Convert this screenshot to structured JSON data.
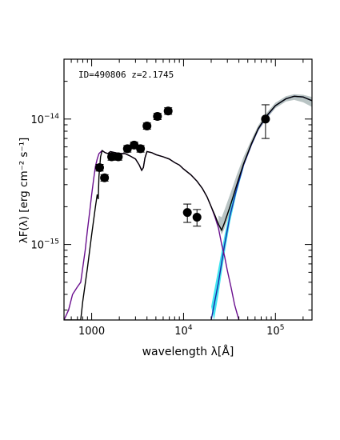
{
  "chart_data": {
    "type": "scatter",
    "annotation": "ID=490806 z=2.1745",
    "xlabel": "wavelength λ[Å]",
    "ylabel": "λF(λ) [erg cm⁻² s⁻¹]",
    "xscale": "log",
    "yscale": "log",
    "xlim": [
      500,
      250000
    ],
    "ylim": [
      2.5e-16,
      3e-14
    ],
    "x_ticks": [
      {
        "value": 1000,
        "label": "1000"
      },
      {
        "value": 10000,
        "label": "10",
        "exp": "4"
      },
      {
        "value": 100000,
        "label": "10",
        "exp": "5"
      }
    ],
    "y_ticks": [
      {
        "value": 1e-14,
        "label": "10",
        "exp": "−14"
      },
      {
        "value": 1e-15,
        "label": "10",
        "exp": "−15"
      }
    ],
    "colors": {
      "points": "#000000",
      "total_model": "#000000",
      "galaxy_model": "#6a0f8e",
      "torus_model": "#1a2aa8",
      "torus_band": "#40e4f0",
      "total_band": "#b9c4c4"
    },
    "photometry": [
      {
        "x": 1220,
        "y": 4.1e-15,
        "yerr": 2.5e-16
      },
      {
        "x": 1380,
        "y": 3.4e-15,
        "yerr": 2e-16
      },
      {
        "x": 1650,
        "y": 5e-15,
        "yerr": 3e-16
      },
      {
        "x": 1950,
        "y": 5e-15,
        "yerr": 3e-16
      },
      {
        "x": 2450,
        "y": 5.8e-15,
        "yerr": 3.5e-16
      },
      {
        "x": 2900,
        "y": 6.2e-15,
        "yerr": 3.5e-16
      },
      {
        "x": 3400,
        "y": 5.8e-15,
        "yerr": 3.5e-16
      },
      {
        "x": 4000,
        "y": 8.8e-15,
        "yerr": 5e-16
      },
      {
        "x": 5200,
        "y": 1.05e-14,
        "yerr": 6e-16
      },
      {
        "x": 6800,
        "y": 1.16e-14,
        "yerr": 7e-16
      },
      {
        "x": 11000,
        "y": 1.8e-15,
        "yerr": 3e-16
      },
      {
        "x": 14000,
        "y": 1.65e-15,
        "yerr": 2.5e-16
      },
      {
        "x": 78000,
        "y": 1e-14,
        "yerr": 3e-15
      }
    ],
    "galaxy_model": [
      [
        500,
        2.5e-16
      ],
      [
        560,
        3e-16
      ],
      [
        620,
        4e-16
      ],
      [
        700,
        4.6e-16
      ],
      [
        760,
        5e-16
      ],
      [
        800,
        6.5e-16
      ],
      [
        850,
        9e-16
      ],
      [
        900,
        1.3e-15
      ],
      [
        950,
        1.8e-15
      ],
      [
        1000,
        2.5e-15
      ],
      [
        1050,
        3.3e-15
      ],
      [
        1100,
        4.2e-15
      ],
      [
        1150,
        4.8e-15
      ],
      [
        1200,
        5.3e-15
      ],
      [
        1300,
        5.6e-15
      ],
      [
        1400,
        5.4e-15
      ],
      [
        1500,
        5.3e-15
      ],
      [
        1600,
        5.5e-15
      ],
      [
        1800,
        5.4e-15
      ],
      [
        2000,
        5.3e-15
      ],
      [
        2300,
        5.3e-15
      ],
      [
        2600,
        5.1e-15
      ],
      [
        3000,
        4.8e-15
      ],
      [
        3300,
        4.3e-15
      ],
      [
        3500,
        3.9e-15
      ],
      [
        3650,
        4.1e-15
      ],
      [
        3800,
        4.9e-15
      ],
      [
        4000,
        5.5e-15
      ],
      [
        4500,
        5.4e-15
      ],
      [
        5000,
        5.2e-15
      ],
      [
        6000,
        5e-15
      ],
      [
        7000,
        4.8e-15
      ],
      [
        8000,
        4.5e-15
      ],
      [
        9000,
        4.3e-15
      ],
      [
        10000,
        4e-15
      ],
      [
        12000,
        3.6e-15
      ],
      [
        14000,
        3.2e-15
      ],
      [
        16000,
        2.8e-15
      ],
      [
        18000,
        2.4e-15
      ],
      [
        20000,
        2e-15
      ],
      [
        22000,
        1.65e-15
      ],
      [
        24000,
        1.35e-15
      ],
      [
        26000,
        1e-15
      ],
      [
        28000,
        8e-16
      ],
      [
        30000,
        6.2e-16
      ],
      [
        33000,
        4.5e-16
      ],
      [
        36000,
        3.3e-16
      ],
      [
        40000,
        2.5e-16
      ]
    ],
    "torus_model": [
      [
        20000,
        2.5e-16
      ],
      [
        24000,
        5e-16
      ],
      [
        28000,
        1e-15
      ],
      [
        32000,
        1.7e-15
      ],
      [
        38000,
        2.8e-15
      ],
      [
        45000,
        4.3e-15
      ],
      [
        55000,
        6.3e-15
      ],
      [
        65000,
        8.3e-15
      ],
      [
        80000,
        1.05e-14
      ],
      [
        100000,
        1.28e-14
      ],
      [
        130000,
        1.45e-14
      ],
      [
        160000,
        1.52e-14
      ],
      [
        200000,
        1.5e-14
      ],
      [
        250000,
        1.4e-14
      ]
    ],
    "total_model": [
      [
        500,
        2.5e-16
      ],
      [
        760,
        2.5e-16
      ],
      [
        800,
        3.5e-16
      ],
      [
        900,
        6.5e-16
      ],
      [
        1000,
        1.2e-15
      ],
      [
        1100,
        2e-15
      ],
      [
        1150,
        2.5e-15
      ],
      [
        1180,
        2.3e-15
      ],
      [
        1200,
        3.5e-15
      ],
      [
        1250,
        5e-15
      ],
      [
        1300,
        5.6e-15
      ],
      [
        1400,
        5.4e-15
      ],
      [
        1500,
        5.3e-15
      ],
      [
        1600,
        5.5e-15
      ],
      [
        1800,
        5.4e-15
      ],
      [
        2000,
        5.3e-15
      ],
      [
        2300,
        5.3e-15
      ],
      [
        2600,
        5.1e-15
      ],
      [
        3000,
        4.8e-15
      ],
      [
        3300,
        4.3e-15
      ],
      [
        3500,
        3.9e-15
      ],
      [
        3650,
        4.1e-15
      ],
      [
        3800,
        4.9e-15
      ],
      [
        4000,
        5.5e-15
      ],
      [
        4500,
        5.4e-15
      ],
      [
        5000,
        5.2e-15
      ],
      [
        6000,
        5e-15
      ],
      [
        7000,
        4.8e-15
      ],
      [
        8000,
        4.5e-15
      ],
      [
        9000,
        4.3e-15
      ],
      [
        10000,
        4e-15
      ],
      [
        12000,
        3.6e-15
      ],
      [
        14000,
        3.2e-15
      ],
      [
        16000,
        2.8e-15
      ],
      [
        18000,
        2.4e-15
      ],
      [
        20000,
        2e-15
      ],
      [
        22000,
        1.7e-15
      ],
      [
        24000,
        1.45e-15
      ],
      [
        26000,
        1.3e-15
      ],
      [
        28000,
        1.5e-15
      ],
      [
        32000,
        2e-15
      ],
      [
        38000,
        3e-15
      ],
      [
        45000,
        4.4e-15
      ],
      [
        55000,
        6.4e-15
      ],
      [
        65000,
        8.4e-15
      ],
      [
        80000,
        1.06e-14
      ],
      [
        100000,
        1.28e-14
      ],
      [
        130000,
        1.45e-14
      ],
      [
        160000,
        1.52e-14
      ],
      [
        200000,
        1.5e-14
      ],
      [
        250000,
        1.4e-14
      ]
    ],
    "torus_band": {
      "upper": [
        [
          20000,
          3.2e-16
        ],
        [
          24000,
          6.5e-16
        ],
        [
          28000,
          1.2e-15
        ],
        [
          32000,
          1.9e-15
        ],
        [
          38000,
          3e-15
        ],
        [
          45000,
          4.5e-15
        ]
      ],
      "lower": [
        [
          45000,
          4.1e-15
        ],
        [
          38000,
          2.6e-15
        ],
        [
          32000,
          1.5e-15
        ],
        [
          28000,
          8.5e-16
        ],
        [
          24000,
          4e-16
        ],
        [
          21500,
          2.5e-16
        ]
      ]
    },
    "total_band": {
      "upper": [
        [
          24000,
          1.7e-15
        ],
        [
          26000,
          1.65e-15
        ],
        [
          28000,
          1.9e-15
        ],
        [
          32000,
          2.5e-15
        ],
        [
          38000,
          3.6e-15
        ],
        [
          45000,
          5e-15
        ],
        [
          55000,
          6.9e-15
        ],
        [
          65000,
          8.9e-15
        ],
        [
          80000,
          1.12e-14
        ],
        [
          100000,
          1.35e-14
        ],
        [
          130000,
          1.52e-14
        ],
        [
          160000,
          1.58e-14
        ],
        [
          200000,
          1.56e-14
        ],
        [
          250000,
          1.5e-14
        ]
      ],
      "lower": [
        [
          250000,
          1.25e-14
        ],
        [
          200000,
          1.36e-14
        ],
        [
          160000,
          1.42e-14
        ],
        [
          130000,
          1.38e-14
        ],
        [
          100000,
          1.22e-14
        ],
        [
          80000,
          1e-14
        ],
        [
          65000,
          8e-15
        ],
        [
          55000,
          6.1e-15
        ],
        [
          45000,
          4.2e-15
        ],
        [
          38000,
          2.8e-15
        ],
        [
          32000,
          1.8e-15
        ],
        [
          28000,
          1.35e-15
        ],
        [
          26000,
          1.2e-15
        ],
        [
          24000,
          1.4e-15
        ]
      ]
    }
  }
}
